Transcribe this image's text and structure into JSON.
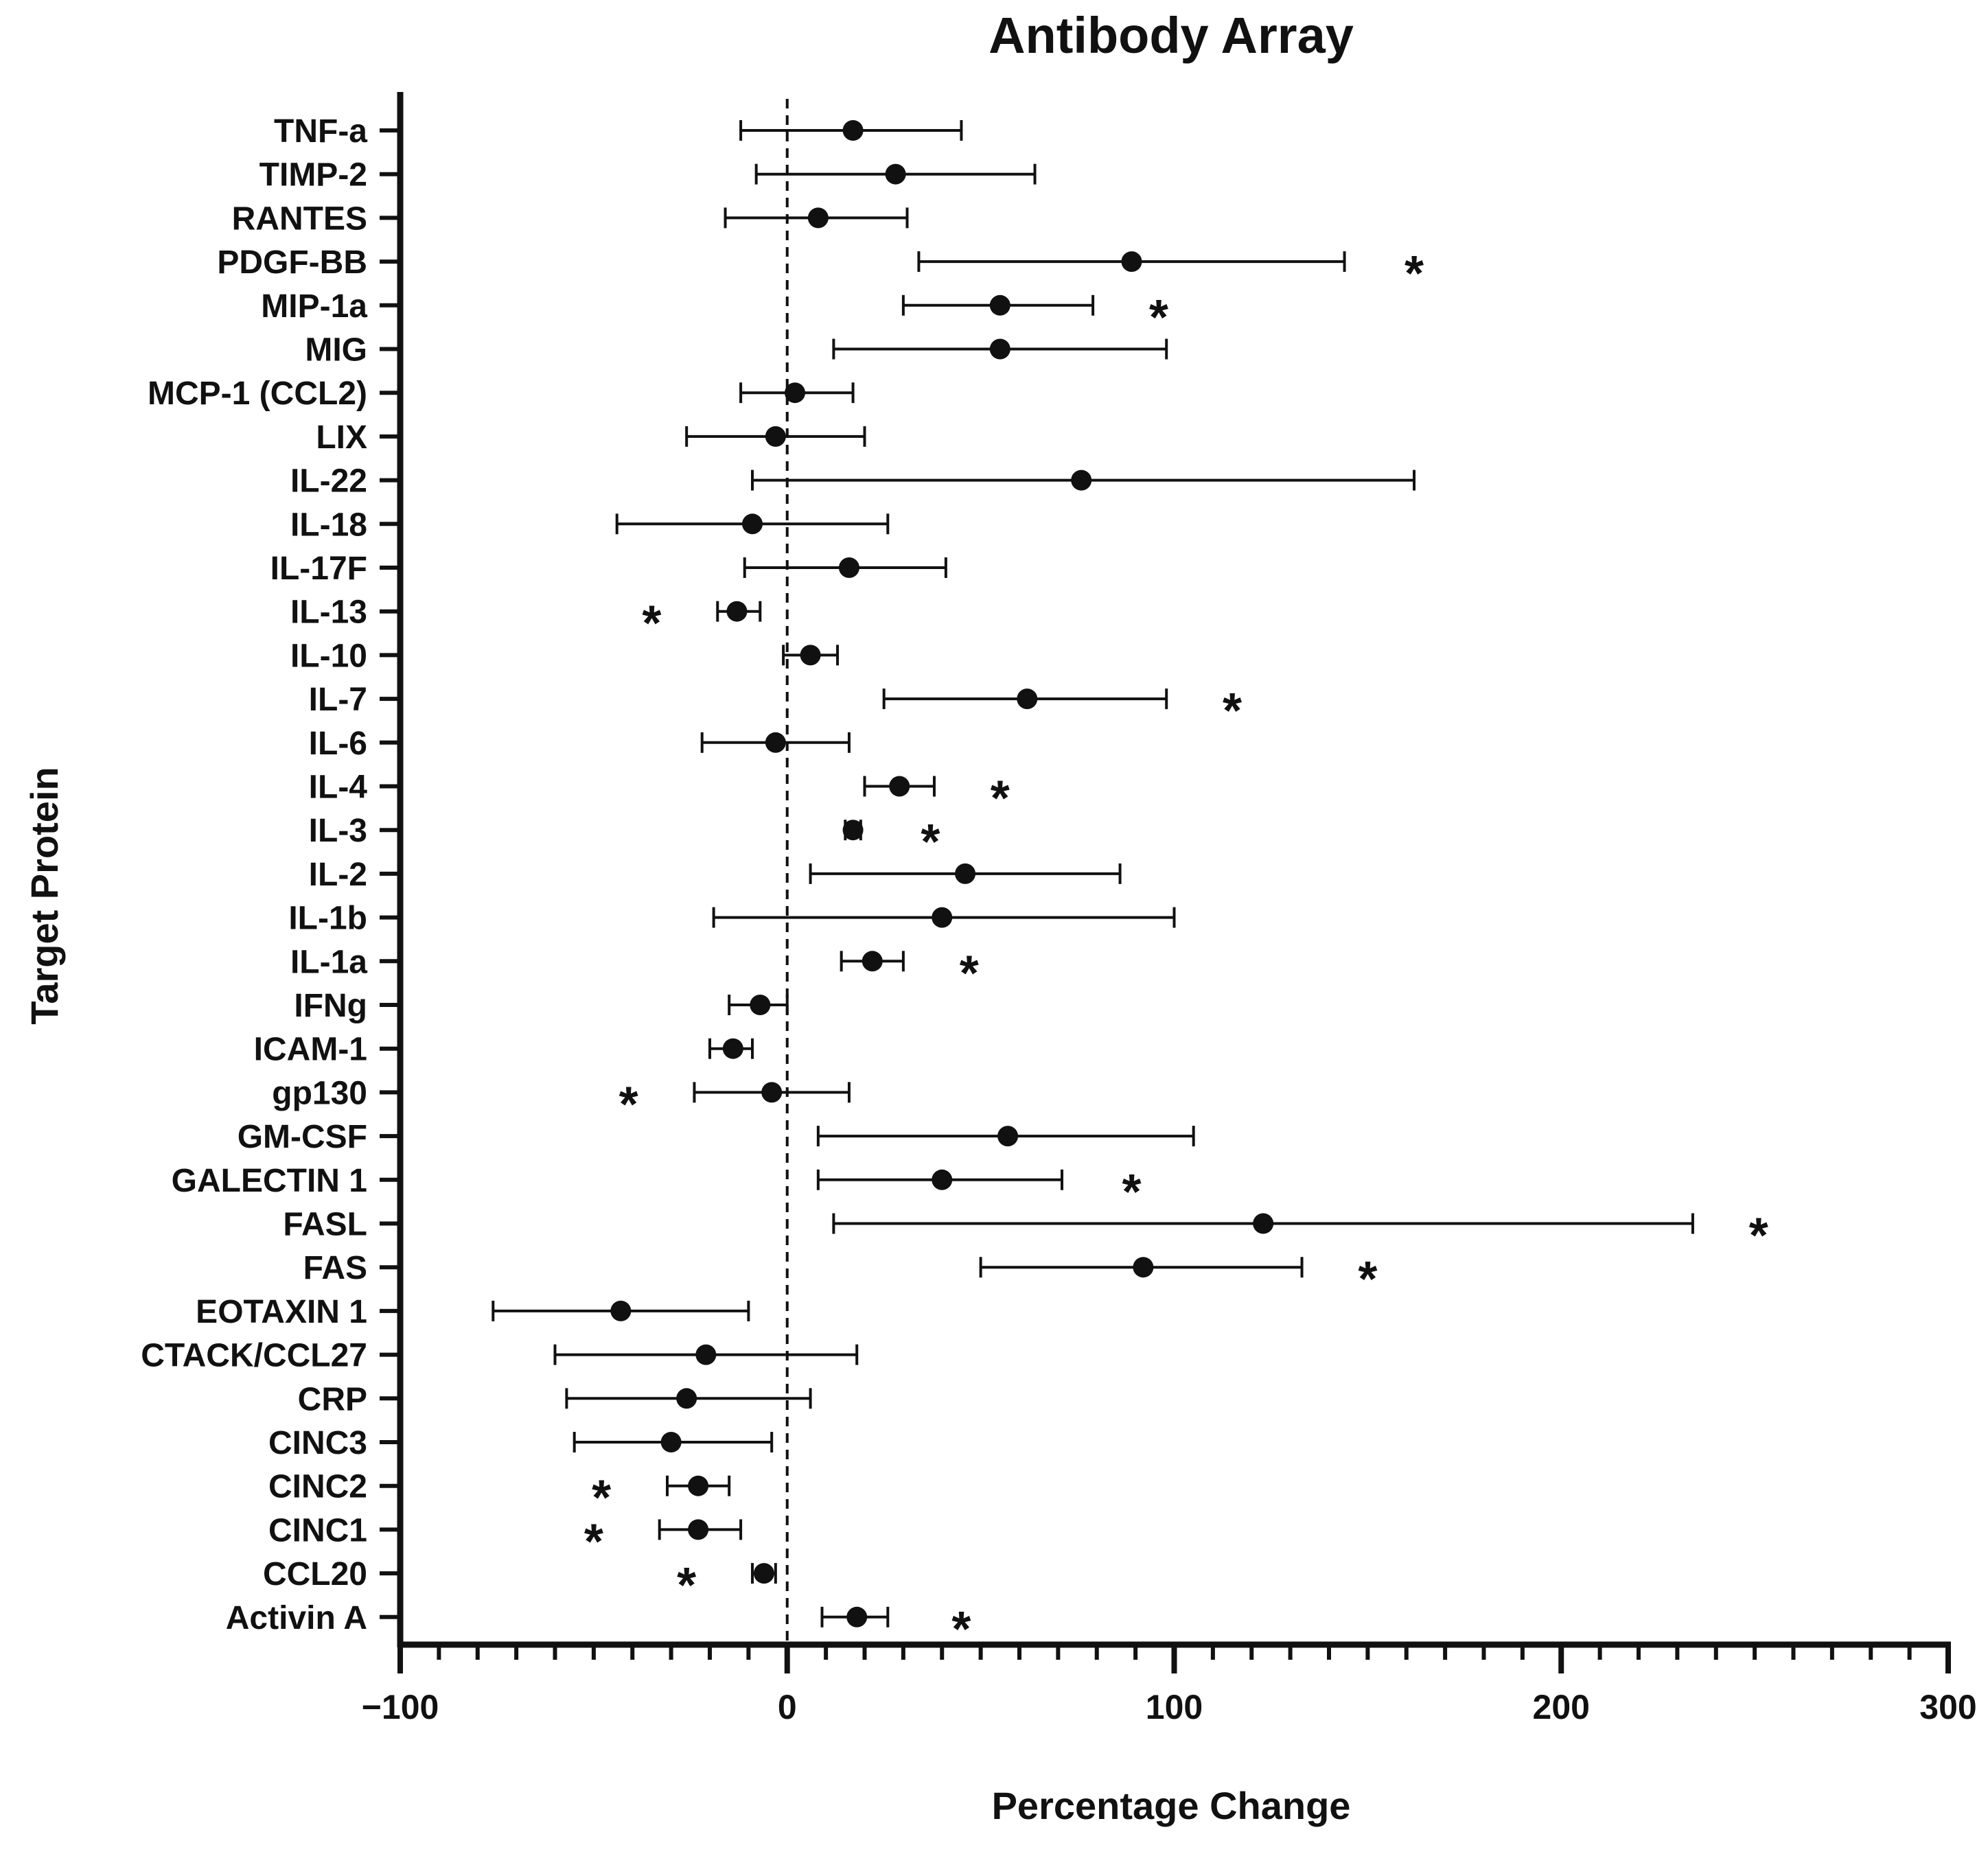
{
  "chart_data": {
    "type": "forest",
    "title": "Antibody Array",
    "xlabel": "Percentage Change",
    "ylabel": "Target Protein",
    "xlim": [
      -100,
      300
    ],
    "xticks": [
      -100,
      0,
      100,
      200,
      300
    ],
    "xtick_labels": [
      "−100",
      "0",
      "100",
      "200",
      "300"
    ],
    "minor_tick_step": 10,
    "reference_line": 0,
    "grid": false,
    "significance_marker": "*",
    "points": [
      {
        "label": "TNF-a",
        "value": 17,
        "low": -12,
        "high": 45,
        "significant": false
      },
      {
        "label": "TIMP-2",
        "value": 28,
        "low": -8,
        "high": 64,
        "significant": false
      },
      {
        "label": "RANTES",
        "value": 8,
        "low": -16,
        "high": 31,
        "significant": false
      },
      {
        "label": "PDGF-BB",
        "value": 89,
        "low": 34,
        "high": 144,
        "significant": true,
        "star_x": 162
      },
      {
        "label": "MIP-1a",
        "value": 55,
        "low": 30,
        "high": 79,
        "significant": true,
        "star_x": 96
      },
      {
        "label": "MIG",
        "value": 55,
        "low": 12,
        "high": 98,
        "significant": false
      },
      {
        "label": "MCP-1 (CCL2)",
        "value": 2,
        "low": -12,
        "high": 17,
        "significant": false
      },
      {
        "label": "LIX",
        "value": -3,
        "low": -26,
        "high": 20,
        "significant": false
      },
      {
        "label": "IL-22",
        "value": 76,
        "low": -9,
        "high": 162,
        "significant": false
      },
      {
        "label": "IL-18",
        "value": -9,
        "low": -44,
        "high": 26,
        "significant": false
      },
      {
        "label": "IL-17F",
        "value": 16,
        "low": -11,
        "high": 41,
        "significant": false
      },
      {
        "label": "IL-13",
        "value": -13,
        "low": -18,
        "high": -7,
        "significant": true,
        "star_x": -35
      },
      {
        "label": "IL-10",
        "value": 6,
        "low": -1,
        "high": 13,
        "significant": false
      },
      {
        "label": "IL-7",
        "value": 62,
        "low": 25,
        "high": 98,
        "significant": true,
        "star_x": 115
      },
      {
        "label": "IL-6",
        "value": -3,
        "low": -22,
        "high": 16,
        "significant": false
      },
      {
        "label": "IL-4",
        "value": 29,
        "low": 20,
        "high": 38,
        "significant": true,
        "star_x": 55
      },
      {
        "label": "IL-3",
        "value": 17,
        "low": 15,
        "high": 19,
        "significant": true,
        "star_x": 37
      },
      {
        "label": "IL-2",
        "value": 46,
        "low": 6,
        "high": 86,
        "significant": false
      },
      {
        "label": "IL-1b",
        "value": 40,
        "low": -19,
        "high": 100,
        "significant": false
      },
      {
        "label": "IL-1a",
        "value": 22,
        "low": 14,
        "high": 30,
        "significant": true,
        "star_x": 47
      },
      {
        "label": "IFNg",
        "value": -7,
        "low": -15,
        "high": 0,
        "significant": false
      },
      {
        "label": "ICAM-1",
        "value": -14,
        "low": -20,
        "high": -9,
        "significant": false
      },
      {
        "label": "gp130",
        "value": -4,
        "low": -24,
        "high": 16,
        "significant": true,
        "star_x": -41
      },
      {
        "label": "GM-CSF",
        "value": 57,
        "low": 8,
        "high": 105,
        "significant": false
      },
      {
        "label": "GALECTIN 1",
        "value": 40,
        "low": 8,
        "high": 71,
        "significant": true,
        "star_x": 89
      },
      {
        "label": "FASL",
        "value": 123,
        "low": 12,
        "high": 234,
        "significant": true,
        "star_x": 251
      },
      {
        "label": "FAS",
        "value": 92,
        "low": 50,
        "high": 133,
        "significant": true,
        "star_x": 150
      },
      {
        "label": "EOTAXIN 1",
        "value": -43,
        "low": -76,
        "high": -10,
        "significant": false
      },
      {
        "label": "CTACK/CCL27",
        "value": -21,
        "low": -60,
        "high": 18,
        "significant": false
      },
      {
        "label": "CRP",
        "value": -26,
        "low": -57,
        "high": 6,
        "significant": false
      },
      {
        "label": "CINC3",
        "value": -30,
        "low": -55,
        "high": -4,
        "significant": false
      },
      {
        "label": "CINC2",
        "value": -23,
        "low": -31,
        "high": -15,
        "significant": true,
        "star_x": -48
      },
      {
        "label": "CINC1",
        "value": -23,
        "low": -33,
        "high": -12,
        "significant": true,
        "star_x": -50
      },
      {
        "label": "CCL20",
        "value": -6,
        "low": -9,
        "high": -3,
        "significant": true,
        "star_x": -26
      },
      {
        "label": "Activin A",
        "value": 18,
        "low": 9,
        "high": 26,
        "significant": true,
        "star_x": 45
      }
    ]
  }
}
